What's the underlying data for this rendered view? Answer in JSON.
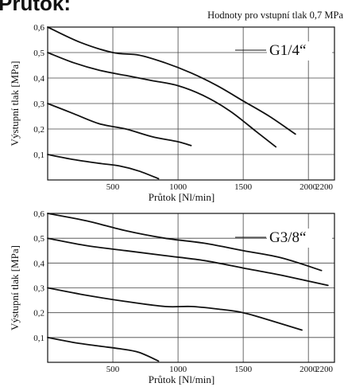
{
  "heading": "Průtok:",
  "note": "Hodnoty pro vstupní tlak 0,7 MPa",
  "chart_data": [
    {
      "type": "line",
      "title": "G1/4“",
      "xlabel": "Průtok [Nl/min]",
      "ylabel": "Výstupní tlak [MPa]",
      "xlim": [
        0,
        2200
      ],
      "ylim": [
        0,
        0.6
      ],
      "xticks": [
        500,
        1000,
        1500,
        2000,
        2200
      ],
      "yticks": [
        0.1,
        0.2,
        0.3,
        0.4,
        0.5,
        0.6
      ],
      "xtick_labels": [
        "500",
        "1000",
        "1500",
        "2000",
        "2200"
      ],
      "ytick_labels": [
        "0,1",
        "0,2",
        "0,3",
        "0,4",
        "0,5",
        "0,6"
      ],
      "grid": true,
      "series": [
        {
          "x": [
            0,
            250,
            500,
            700,
            900,
            1100,
            1300,
            1500,
            1700,
            1900
          ],
          "y": [
            0.6,
            0.54,
            0.5,
            0.49,
            0.46,
            0.42,
            0.37,
            0.31,
            0.25,
            0.18
          ]
        },
        {
          "x": [
            0,
            200,
            400,
            600,
            800,
            1000,
            1200,
            1400,
            1600,
            1750
          ],
          "y": [
            0.5,
            0.46,
            0.43,
            0.41,
            0.39,
            0.37,
            0.33,
            0.27,
            0.19,
            0.13
          ]
        },
        {
          "x": [
            0,
            200,
            400,
            600,
            800,
            1000,
            1100
          ],
          "y": [
            0.3,
            0.26,
            0.22,
            0.2,
            0.17,
            0.15,
            0.135
          ]
        },
        {
          "x": [
            0,
            200,
            400,
            550,
            700,
            850
          ],
          "y": [
            0.1,
            0.08,
            0.065,
            0.055,
            0.035,
            0.005
          ]
        }
      ]
    },
    {
      "type": "line",
      "title": "G3/8“",
      "xlabel": "Průtok [Nl/min]",
      "ylabel": "Výstupní tlak [MPa]",
      "xlim": [
        0,
        2200
      ],
      "ylim": [
        0,
        0.6
      ],
      "xticks": [
        500,
        1000,
        1500,
        2000,
        2200
      ],
      "yticks": [
        0.1,
        0.2,
        0.3,
        0.4,
        0.5,
        0.6
      ],
      "xtick_labels": [
        "500",
        "1000",
        "1500",
        "2000",
        "2200"
      ],
      "ytick_labels": [
        "0,1",
        "0,2",
        "0,3",
        "0,4",
        "0,5",
        "0,6"
      ],
      "grid": true,
      "series": [
        {
          "x": [
            0,
            300,
            600,
            900,
            1200,
            1500,
            1800,
            2100
          ],
          "y": [
            0.6,
            0.57,
            0.53,
            0.5,
            0.48,
            0.45,
            0.42,
            0.37
          ]
        },
        {
          "x": [
            0,
            300,
            600,
            900,
            1200,
            1500,
            1800,
            2150
          ],
          "y": [
            0.5,
            0.47,
            0.45,
            0.43,
            0.41,
            0.38,
            0.35,
            0.31
          ]
        },
        {
          "x": [
            0,
            300,
            600,
            900,
            1100,
            1300,
            1500,
            1700,
            1950
          ],
          "y": [
            0.3,
            0.27,
            0.245,
            0.225,
            0.225,
            0.215,
            0.2,
            0.17,
            0.13
          ]
        },
        {
          "x": [
            0,
            200,
            400,
            550,
            700,
            850
          ],
          "y": [
            0.1,
            0.08,
            0.065,
            0.055,
            0.04,
            0.005
          ]
        }
      ]
    }
  ]
}
